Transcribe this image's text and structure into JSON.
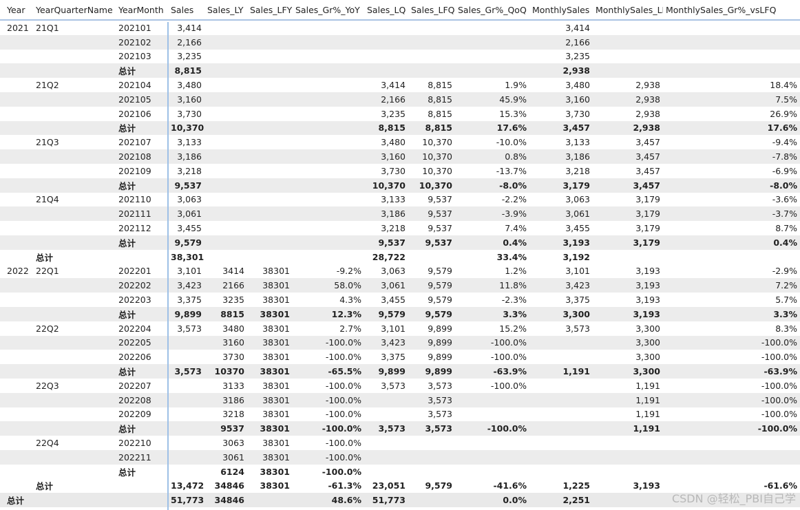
{
  "headers": [
    "Year",
    "YearQuarterName",
    "YearMonth",
    "Sales",
    "Sales_LY",
    "Sales_LFY",
    "Sales_Gr%_YoY",
    "Sales_LQ",
    "Sales_LFQ",
    "Sales_Gr%_QoQ",
    "MonthlySales",
    "MonthlySales_LFQ",
    "MonthlySales_Gr%_vsLFQ"
  ],
  "rows": [
    {
      "cells": [
        "2021",
        "21Q1",
        "202101",
        "3,414",
        "",
        "",
        "",
        "",
        "",
        "",
        "3,414",
        "",
        ""
      ],
      "total": false,
      "shade": false
    },
    {
      "cells": [
        "",
        "",
        "202102",
        "2,166",
        "",
        "",
        "",
        "",
        "",
        "",
        "2,166",
        "",
        ""
      ],
      "total": false,
      "shade": true
    },
    {
      "cells": [
        "",
        "",
        "202103",
        "3,235",
        "",
        "",
        "",
        "",
        "",
        "",
        "3,235",
        "",
        ""
      ],
      "total": false,
      "shade": false
    },
    {
      "cells": [
        "",
        "",
        "总计",
        "8,815",
        "",
        "",
        "",
        "",
        "",
        "",
        "2,938",
        "",
        ""
      ],
      "total": true,
      "shade": true
    },
    {
      "cells": [
        "",
        "21Q2",
        "202104",
        "3,480",
        "",
        "",
        "",
        "3,414",
        "8,815",
        "1.9%",
        "3,480",
        "2,938",
        "18.4%"
      ],
      "total": false,
      "shade": false
    },
    {
      "cells": [
        "",
        "",
        "202105",
        "3,160",
        "",
        "",
        "",
        "2,166",
        "8,815",
        "45.9%",
        "3,160",
        "2,938",
        "7.5%"
      ],
      "total": false,
      "shade": true
    },
    {
      "cells": [
        "",
        "",
        "202106",
        "3,730",
        "",
        "",
        "",
        "3,235",
        "8,815",
        "15.3%",
        "3,730",
        "2,938",
        "26.9%"
      ],
      "total": false,
      "shade": false
    },
    {
      "cells": [
        "",
        "",
        "总计",
        "10,370",
        "",
        "",
        "",
        "8,815",
        "8,815",
        "17.6%",
        "3,457",
        "2,938",
        "17.6%"
      ],
      "total": true,
      "shade": true
    },
    {
      "cells": [
        "",
        "21Q3",
        "202107",
        "3,133",
        "",
        "",
        "",
        "3,480",
        "10,370",
        "-10.0%",
        "3,133",
        "3,457",
        "-9.4%"
      ],
      "total": false,
      "shade": false
    },
    {
      "cells": [
        "",
        "",
        "202108",
        "3,186",
        "",
        "",
        "",
        "3,160",
        "10,370",
        "0.8%",
        "3,186",
        "3,457",
        "-7.8%"
      ],
      "total": false,
      "shade": true
    },
    {
      "cells": [
        "",
        "",
        "202109",
        "3,218",
        "",
        "",
        "",
        "3,730",
        "10,370",
        "-13.7%",
        "3,218",
        "3,457",
        "-6.9%"
      ],
      "total": false,
      "shade": false
    },
    {
      "cells": [
        "",
        "",
        "总计",
        "9,537",
        "",
        "",
        "",
        "10,370",
        "10,370",
        "-8.0%",
        "3,179",
        "3,457",
        "-8.0%"
      ],
      "total": true,
      "shade": true
    },
    {
      "cells": [
        "",
        "21Q4",
        "202110",
        "3,063",
        "",
        "",
        "",
        "3,133",
        "9,537",
        "-2.2%",
        "3,063",
        "3,179",
        "-3.6%"
      ],
      "total": false,
      "shade": false
    },
    {
      "cells": [
        "",
        "",
        "202111",
        "3,061",
        "",
        "",
        "",
        "3,186",
        "9,537",
        "-3.9%",
        "3,061",
        "3,179",
        "-3.7%"
      ],
      "total": false,
      "shade": true
    },
    {
      "cells": [
        "",
        "",
        "202112",
        "3,455",
        "",
        "",
        "",
        "3,218",
        "9,537",
        "7.4%",
        "3,455",
        "3,179",
        "8.7%"
      ],
      "total": false,
      "shade": false
    },
    {
      "cells": [
        "",
        "",
        "总计",
        "9,579",
        "",
        "",
        "",
        "9,537",
        "9,537",
        "0.4%",
        "3,193",
        "3,179",
        "0.4%"
      ],
      "total": true,
      "shade": true
    },
    {
      "cells": [
        "",
        "总计",
        "",
        "38,301",
        "",
        "",
        "",
        "28,722",
        "",
        "33.4%",
        "3,192",
        "",
        ""
      ],
      "total": true,
      "shade": false
    },
    {
      "cells": [
        "2022",
        "22Q1",
        "202201",
        "3,101",
        "3414",
        "38301",
        "-9.2%",
        "3,063",
        "9,579",
        "1.2%",
        "3,101",
        "3,193",
        "-2.9%"
      ],
      "total": false,
      "shade": false
    },
    {
      "cells": [
        "",
        "",
        "202202",
        "3,423",
        "2166",
        "38301",
        "58.0%",
        "3,061",
        "9,579",
        "11.8%",
        "3,423",
        "3,193",
        "7.2%"
      ],
      "total": false,
      "shade": true
    },
    {
      "cells": [
        "",
        "",
        "202203",
        "3,375",
        "3235",
        "38301",
        "4.3%",
        "3,455",
        "9,579",
        "-2.3%",
        "3,375",
        "3,193",
        "5.7%"
      ],
      "total": false,
      "shade": false
    },
    {
      "cells": [
        "",
        "",
        "总计",
        "9,899",
        "8815",
        "38301",
        "12.3%",
        "9,579",
        "9,579",
        "3.3%",
        "3,300",
        "3,193",
        "3.3%"
      ],
      "total": true,
      "shade": true
    },
    {
      "cells": [
        "",
        "22Q2",
        "202204",
        "3,573",
        "3480",
        "38301",
        "2.7%",
        "3,101",
        "9,899",
        "15.2%",
        "3,573",
        "3,300",
        "8.3%"
      ],
      "total": false,
      "shade": false
    },
    {
      "cells": [
        "",
        "",
        "202205",
        "",
        "3160",
        "38301",
        "-100.0%",
        "3,423",
        "9,899",
        "-100.0%",
        "",
        "3,300",
        "-100.0%"
      ],
      "total": false,
      "shade": true
    },
    {
      "cells": [
        "",
        "",
        "202206",
        "",
        "3730",
        "38301",
        "-100.0%",
        "3,375",
        "9,899",
        "-100.0%",
        "",
        "3,300",
        "-100.0%"
      ],
      "total": false,
      "shade": false
    },
    {
      "cells": [
        "",
        "",
        "总计",
        "3,573",
        "10370",
        "38301",
        "-65.5%",
        "9,899",
        "9,899",
        "-63.9%",
        "1,191",
        "3,300",
        "-63.9%"
      ],
      "total": true,
      "shade": true
    },
    {
      "cells": [
        "",
        "22Q3",
        "202207",
        "",
        "3133",
        "38301",
        "-100.0%",
        "3,573",
        "3,573",
        "-100.0%",
        "",
        "1,191",
        "-100.0%"
      ],
      "total": false,
      "shade": false
    },
    {
      "cells": [
        "",
        "",
        "202208",
        "",
        "3186",
        "38301",
        "-100.0%",
        "",
        "3,573",
        "",
        "",
        "1,191",
        "-100.0%"
      ],
      "total": false,
      "shade": true
    },
    {
      "cells": [
        "",
        "",
        "202209",
        "",
        "3218",
        "38301",
        "-100.0%",
        "",
        "3,573",
        "",
        "",
        "1,191",
        "-100.0%"
      ],
      "total": false,
      "shade": false
    },
    {
      "cells": [
        "",
        "",
        "总计",
        "",
        "9537",
        "38301",
        "-100.0%",
        "3,573",
        "3,573",
        "-100.0%",
        "",
        "1,191",
        "-100.0%"
      ],
      "total": true,
      "shade": true
    },
    {
      "cells": [
        "",
        "22Q4",
        "202210",
        "",
        "3063",
        "38301",
        "-100.0%",
        "",
        "",
        "",
        "",
        "",
        ""
      ],
      "total": false,
      "shade": false
    },
    {
      "cells": [
        "",
        "",
        "202211",
        "",
        "3061",
        "38301",
        "-100.0%",
        "",
        "",
        "",
        "",
        "",
        ""
      ],
      "total": false,
      "shade": true
    },
    {
      "cells": [
        "",
        "",
        "总计",
        "",
        "6124",
        "38301",
        "-100.0%",
        "",
        "",
        "",
        "",
        "",
        ""
      ],
      "total": true,
      "shade": false
    },
    {
      "cells": [
        "",
        "总计",
        "",
        "13,472",
        "34846",
        "38301",
        "-61.3%",
        "23,051",
        "9,579",
        "-41.6%",
        "1,225",
        "3,193",
        "-61.6%"
      ],
      "total": true,
      "shade": false
    },
    {
      "cells": [
        "总计",
        "",
        "",
        "51,773",
        "34846",
        "",
        "48.6%",
        "51,773",
        "",
        "0.0%",
        "2,251",
        "",
        ""
      ],
      "total": true,
      "shade": true,
      "grand": true
    }
  ],
  "watermark": "CSDN @轻松_PBI自己学"
}
